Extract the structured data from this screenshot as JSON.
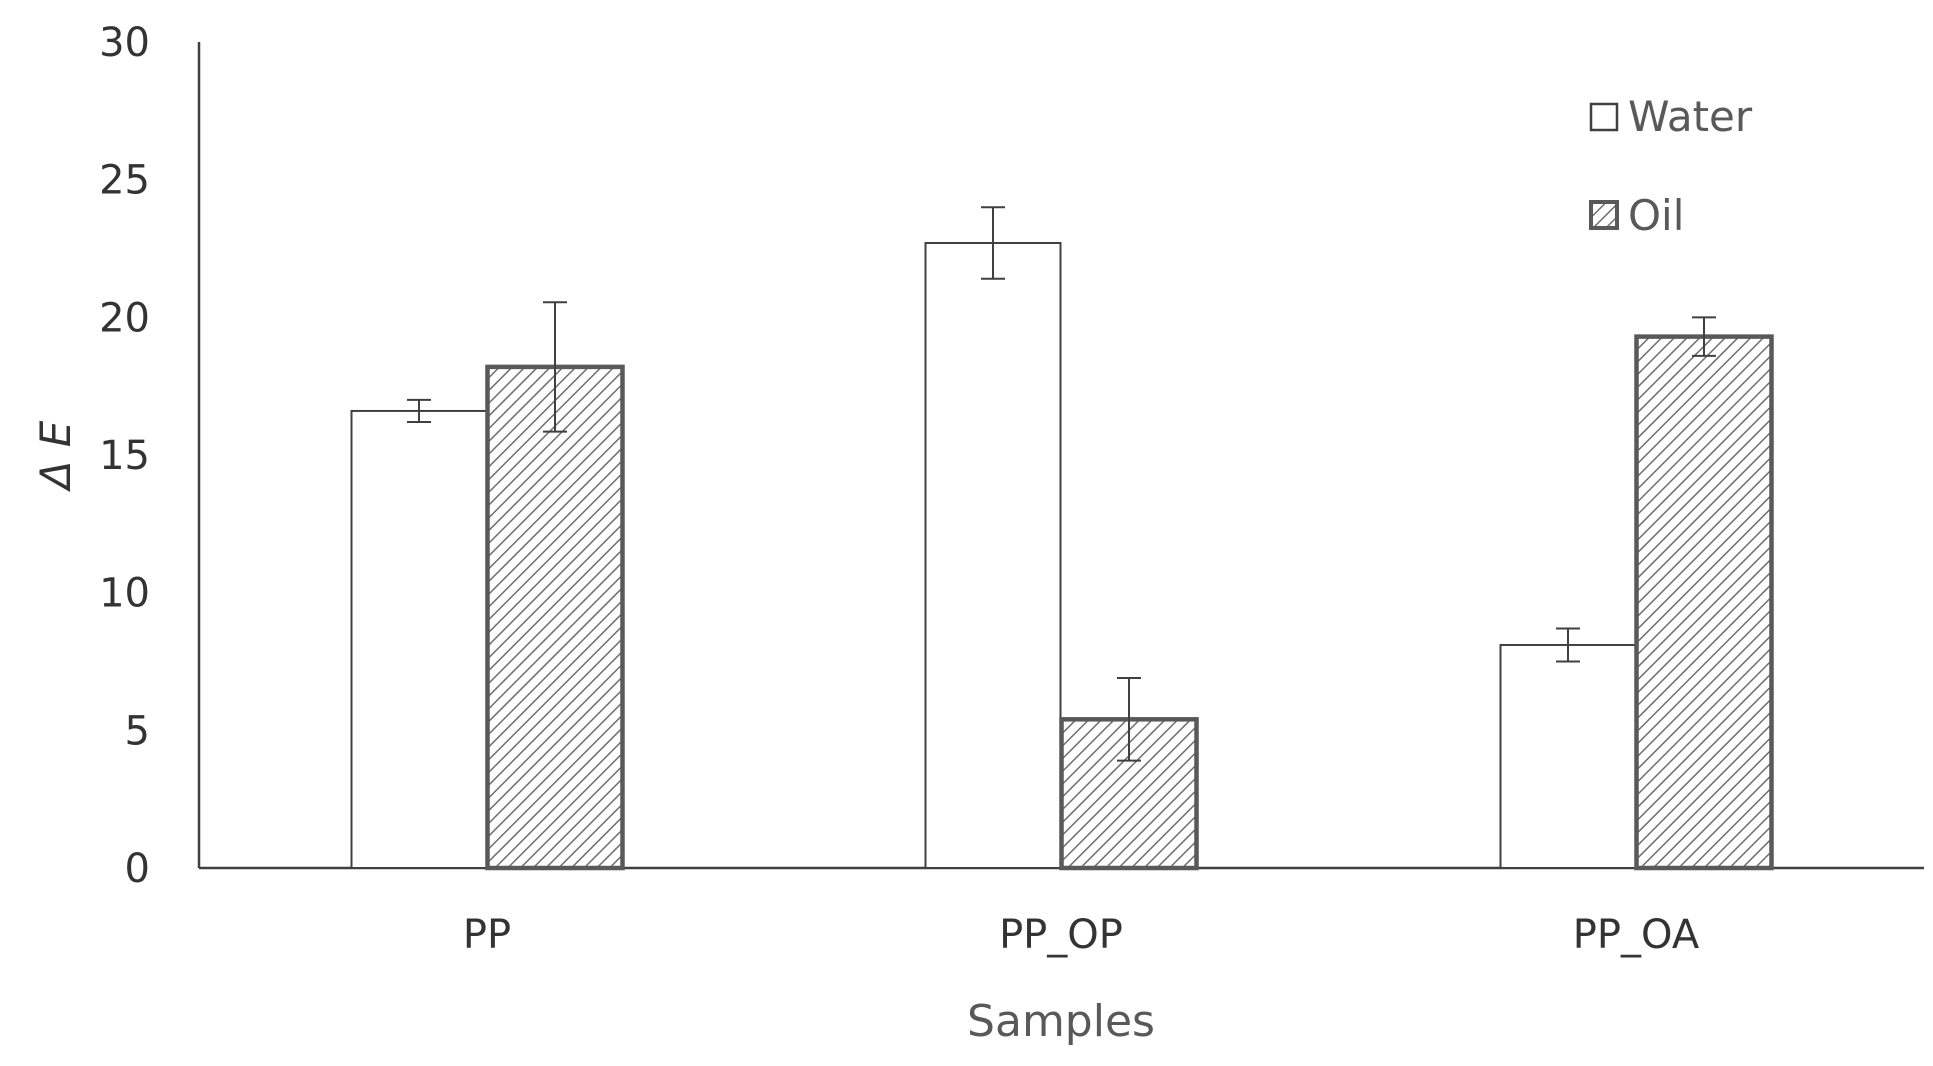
{
  "chart_data": {
    "type": "bar",
    "title": "",
    "xlabel": "Samples",
    "ylabel": "Δ E",
    "ylim": [
      0,
      30
    ],
    "yticks": [
      0,
      5,
      10,
      15,
      20,
      25,
      30
    ],
    "grid": false,
    "legend_position": "top-right",
    "categories": [
      "PP",
      "PP_OP",
      "PP_OA"
    ],
    "series": [
      {
        "name": "Water",
        "fill": "plain",
        "values": [
          16.6,
          22.7,
          8.1
        ],
        "error": [
          0.4,
          1.3,
          0.6
        ],
        "border_color": "#404040"
      },
      {
        "name": "Oil",
        "fill": "diagonal-hatch",
        "values": [
          18.2,
          5.4,
          19.3
        ],
        "error": [
          2.35,
          1.5,
          0.7
        ],
        "border_color": "#595959"
      }
    ]
  }
}
